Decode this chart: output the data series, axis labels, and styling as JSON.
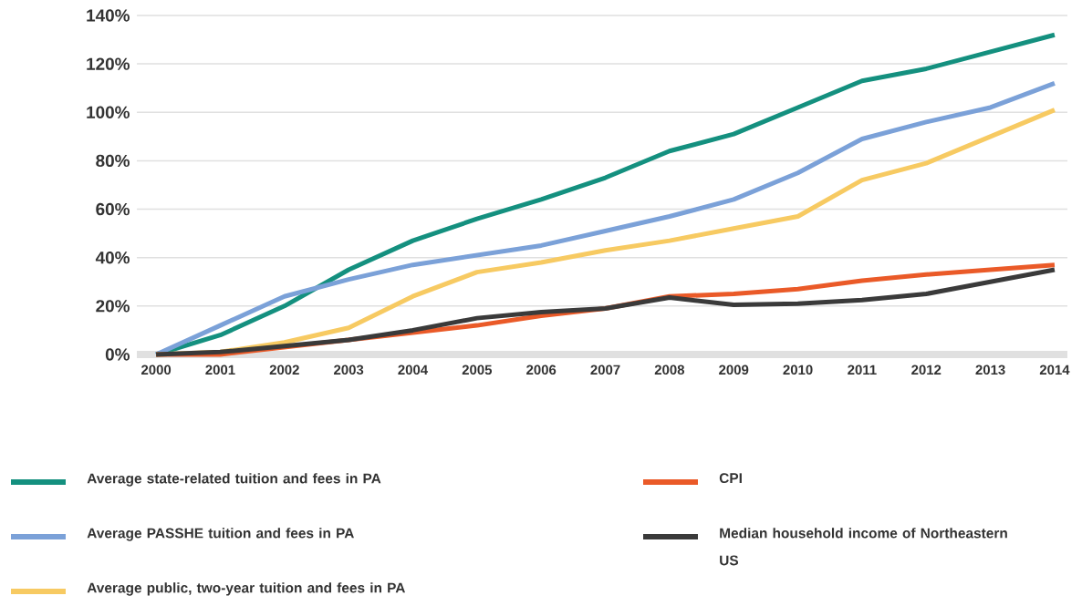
{
  "chart_data": {
    "type": "line",
    "x": [
      2000,
      2001,
      2002,
      2003,
      2004,
      2005,
      2006,
      2007,
      2008,
      2009,
      2010,
      2011,
      2012,
      2013,
      2014
    ],
    "xlim": [
      1999.7,
      2014.2
    ],
    "xticks": [
      2000,
      2001,
      2002,
      2003,
      2004,
      2005,
      2006,
      2007,
      2008,
      2009,
      2010,
      2011,
      2012,
      2013,
      2014
    ],
    "ylim": [
      0,
      140
    ],
    "yticks": [
      {
        "value": 0,
        "label": "0%"
      },
      {
        "value": 20,
        "label": "20%"
      },
      {
        "value": 40,
        "label": "40%"
      },
      {
        "value": 60,
        "label": "60%"
      },
      {
        "value": 80,
        "label": "80%"
      },
      {
        "value": 100,
        "label": "100%"
      },
      {
        "value": 120,
        "label": "120%"
      },
      {
        "value": 140,
        "label": "140%"
      }
    ],
    "grid": "y",
    "legend": "bottom",
    "series": [
      {
        "name": "Average state-related tuition and fees in PA",
        "color": "#14907f",
        "values": [
          0,
          8,
          20,
          35,
          47,
          56,
          64,
          73,
          84,
          91,
          102,
          113,
          118,
          125,
          132
        ]
      },
      {
        "name": "Average PASSHE tuition and fees in PA",
        "color": "#7ba1d8",
        "values": [
          0,
          12,
          24,
          31,
          37,
          41,
          45,
          51,
          57,
          64,
          75,
          89,
          96,
          102,
          112
        ]
      },
      {
        "name": "Average public, two-year tuition and fees in PA",
        "color": "#f7ca62",
        "values": [
          0,
          1,
          5,
          11,
          24,
          34,
          38,
          43,
          47,
          52,
          57,
          72,
          79,
          90,
          101
        ]
      },
      {
        "name": "CPI",
        "color": "#ea5a28",
        "values": [
          0,
          0,
          3,
          6,
          9,
          12,
          16,
          19,
          24,
          25,
          27,
          30.5,
          33,
          35,
          37
        ]
      },
      {
        "name": "Median household income of Northeastern US",
        "color": "#3a3a3a",
        "values": [
          0,
          1,
          3.5,
          6,
          10,
          15,
          17.5,
          19,
          23.5,
          20.5,
          21,
          22.5,
          25,
          30,
          35
        ]
      }
    ]
  }
}
